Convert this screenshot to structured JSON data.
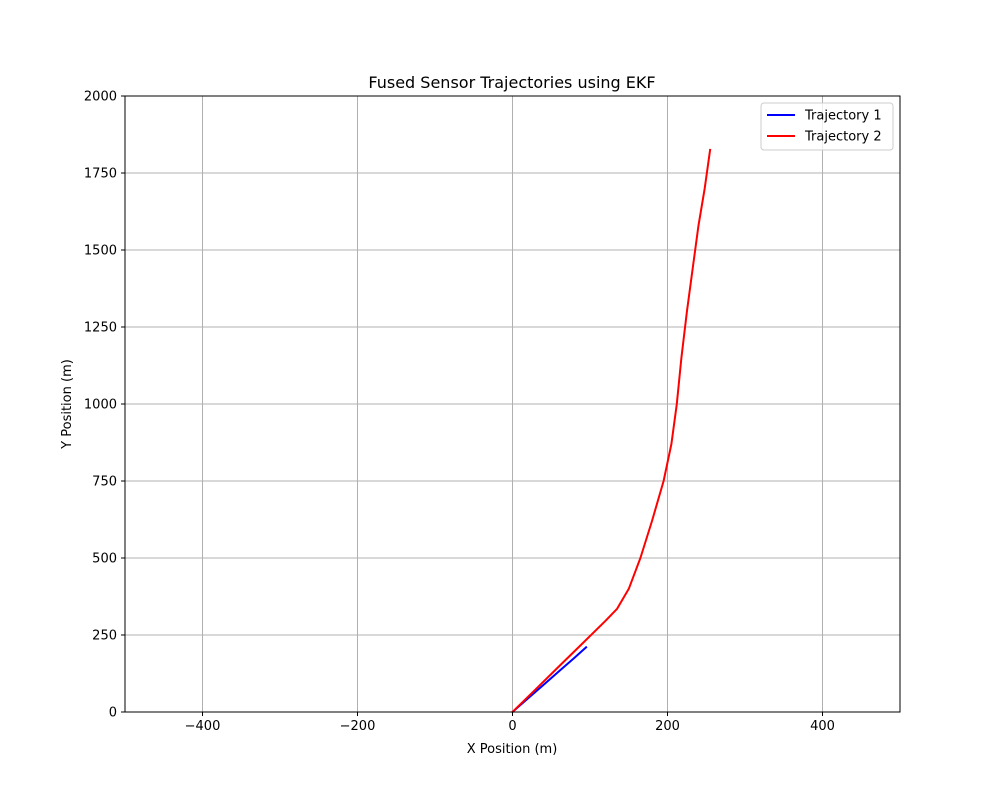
{
  "chart_data": {
    "type": "line",
    "title": "Fused Sensor Trajectories using EKF",
    "xlabel": "X Position (m)",
    "ylabel": "Y Position (m)",
    "xlim": [
      -500,
      500
    ],
    "ylim": [
      0,
      2000
    ],
    "xticks": [
      -400,
      -200,
      0,
      200,
      400
    ],
    "xtick_labels": [
      "−400",
      "−200",
      "0",
      "200",
      "400"
    ],
    "yticks": [
      0,
      250,
      500,
      750,
      1000,
      1250,
      1500,
      1750,
      2000
    ],
    "ytick_labels": [
      "0",
      "250",
      "500",
      "750",
      "1000",
      "1250",
      "1500",
      "1750",
      "2000"
    ],
    "grid": true,
    "legend_position": "top-right",
    "series": [
      {
        "name": "Trajectory 1",
        "color": "#0000ff",
        "x": [
          0,
          20,
          40,
          60,
          80,
          95
        ],
        "y": [
          0,
          44,
          88,
          132,
          176,
          210
        ]
      },
      {
        "name": "Trajectory 2",
        "color": "#ff0000",
        "x": [
          0,
          30,
          60,
          90,
          120,
          135,
          150,
          165,
          180,
          195,
          205,
          212,
          218,
          225,
          233,
          240,
          248,
          255
        ],
        "y": [
          0,
          74,
          148,
          222,
          296,
          335,
          400,
          500,
          620,
          750,
          870,
          1000,
          1150,
          1300,
          1450,
          1580,
          1700,
          1825
        ]
      }
    ]
  }
}
